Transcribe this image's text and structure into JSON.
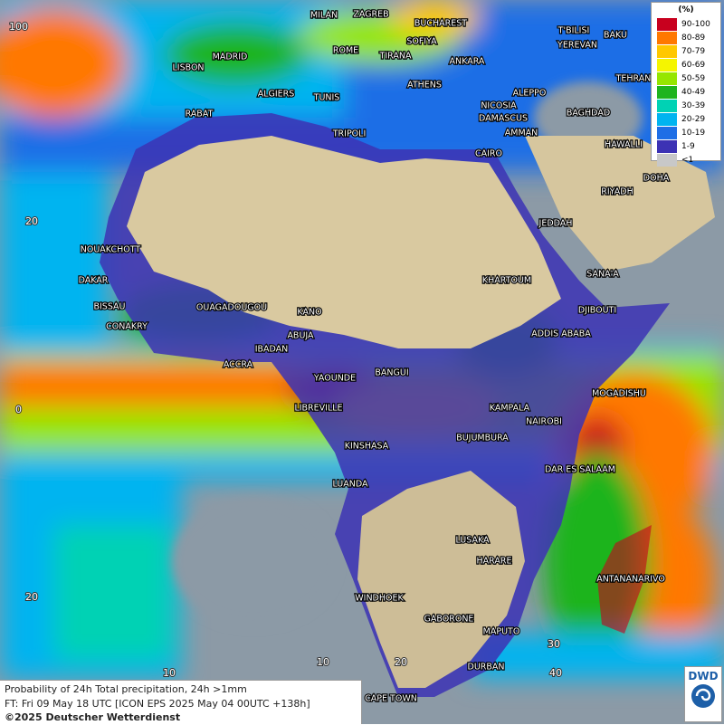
{
  "map": {
    "cities": [
      "MILAN",
      "ZAGREB",
      "BUCHAREST",
      "T'BILISI",
      "BAKU",
      "ROME",
      "SOFIYA",
      "YEREVAN",
      "MADRID",
      "TIRANA",
      "ANKARA",
      "LISBON",
      "TEHRAN",
      "ATHENS",
      "ALGIERS",
      "TUNIS",
      "ALEPPO",
      "RABAT",
      "NICOSIA",
      "BAGHDAD",
      "DAMASCUS",
      "TRIPOLI",
      "AMMAN",
      "HAWALLI",
      "CAIRO",
      "DOHA",
      "RIYADH",
      "JEDDAH",
      "NOUAKCHOTT",
      "SANA'A",
      "DAKAR",
      "KHARTOUM",
      "BISSAU",
      "OUAGADOUGOU",
      "DJIBOUTI",
      "KANO",
      "CONAKRY",
      "ABUJA",
      "ADDIS ABABA",
      "IBADAN",
      "ACCRA",
      "BANGUI",
      "YAOUNDE",
      "MOGADISHU",
      "LIBREVILLE",
      "KAMPALA",
      "NAIROBI",
      "KINSHASA",
      "BUJUMBURA",
      "DAR ES SALAAM",
      "LUANDA",
      "LUSAKA",
      "HARARE",
      "ANTANANARIVO",
      "WINDHOEK",
      "GABORONE",
      "MAPUTO",
      "DURBAN",
      "CAPE TOWN"
    ],
    "grid_labels": [
      "100",
      "20",
      "0",
      "20",
      "10",
      "10",
      "20",
      "30",
      "40"
    ],
    "legend": {
      "title": "(%)",
      "items": [
        {
          "label": "90-100",
          "color": "#c8001e"
        },
        {
          "label": "80-89",
          "color": "#ff7800"
        },
        {
          "label": "70-79",
          "color": "#ffc800"
        },
        {
          "label": "60-69",
          "color": "#f5f500"
        },
        {
          "label": "50-59",
          "color": "#96e600"
        },
        {
          "label": "40-49",
          "color": "#1eb41e"
        },
        {
          "label": "30-39",
          "color": "#00d2b4"
        },
        {
          "label": "20-29",
          "color": "#00b4f0"
        },
        {
          "label": "10-19",
          "color": "#1e6ee6"
        },
        {
          "label": "1-9",
          "color": "#3c32b4"
        },
        {
          "label": "<1",
          "color": "#c8c8c8"
        }
      ]
    },
    "info": {
      "line1": "Probability of 24h Total precipitation, 24h >1mm",
      "line2": "FT: Fri 09 May 18 UTC [ICON EPS 2025 May 04 00UTC +138h]",
      "line3": "©2025 Deutscher Wetterdienst"
    },
    "logo": "DWD"
  }
}
